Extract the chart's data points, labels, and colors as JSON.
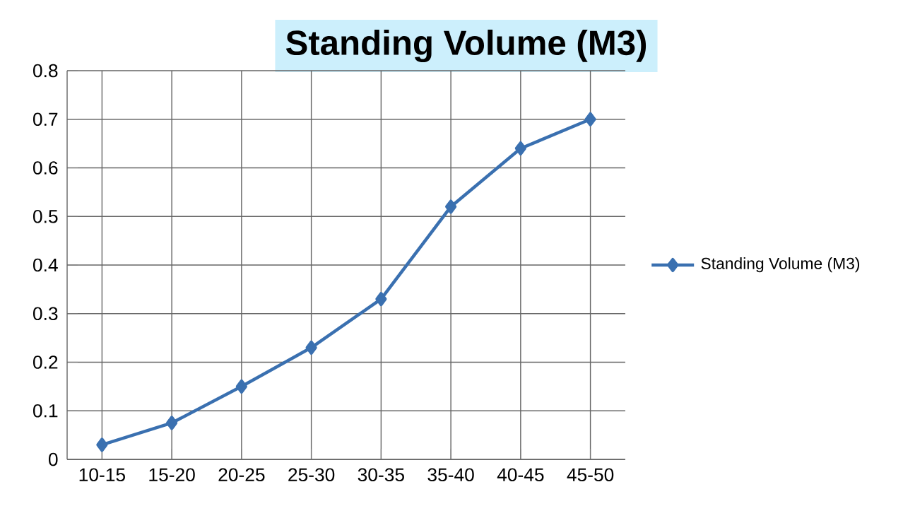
{
  "chart_data": {
    "type": "line",
    "title": "Standing Volume (M3)",
    "categories": [
      "10-15",
      "15-20",
      "20-25",
      "25-30",
      "30-35",
      "35-40",
      "40-45",
      "45-50"
    ],
    "series": [
      {
        "name": "Standing Volume (M3)",
        "color": "#3a70b0",
        "values": [
          0.03,
          0.075,
          0.15,
          0.23,
          0.33,
          0.52,
          0.64,
          0.7
        ]
      }
    ],
    "ylim": [
      0,
      0.8
    ],
    "yticks": [
      0,
      0.1,
      0.2,
      0.3,
      0.4,
      0.5,
      0.6,
      0.7,
      0.8
    ],
    "grid": true,
    "legend": "right",
    "marker": "diamond",
    "line_style": "solid"
  }
}
